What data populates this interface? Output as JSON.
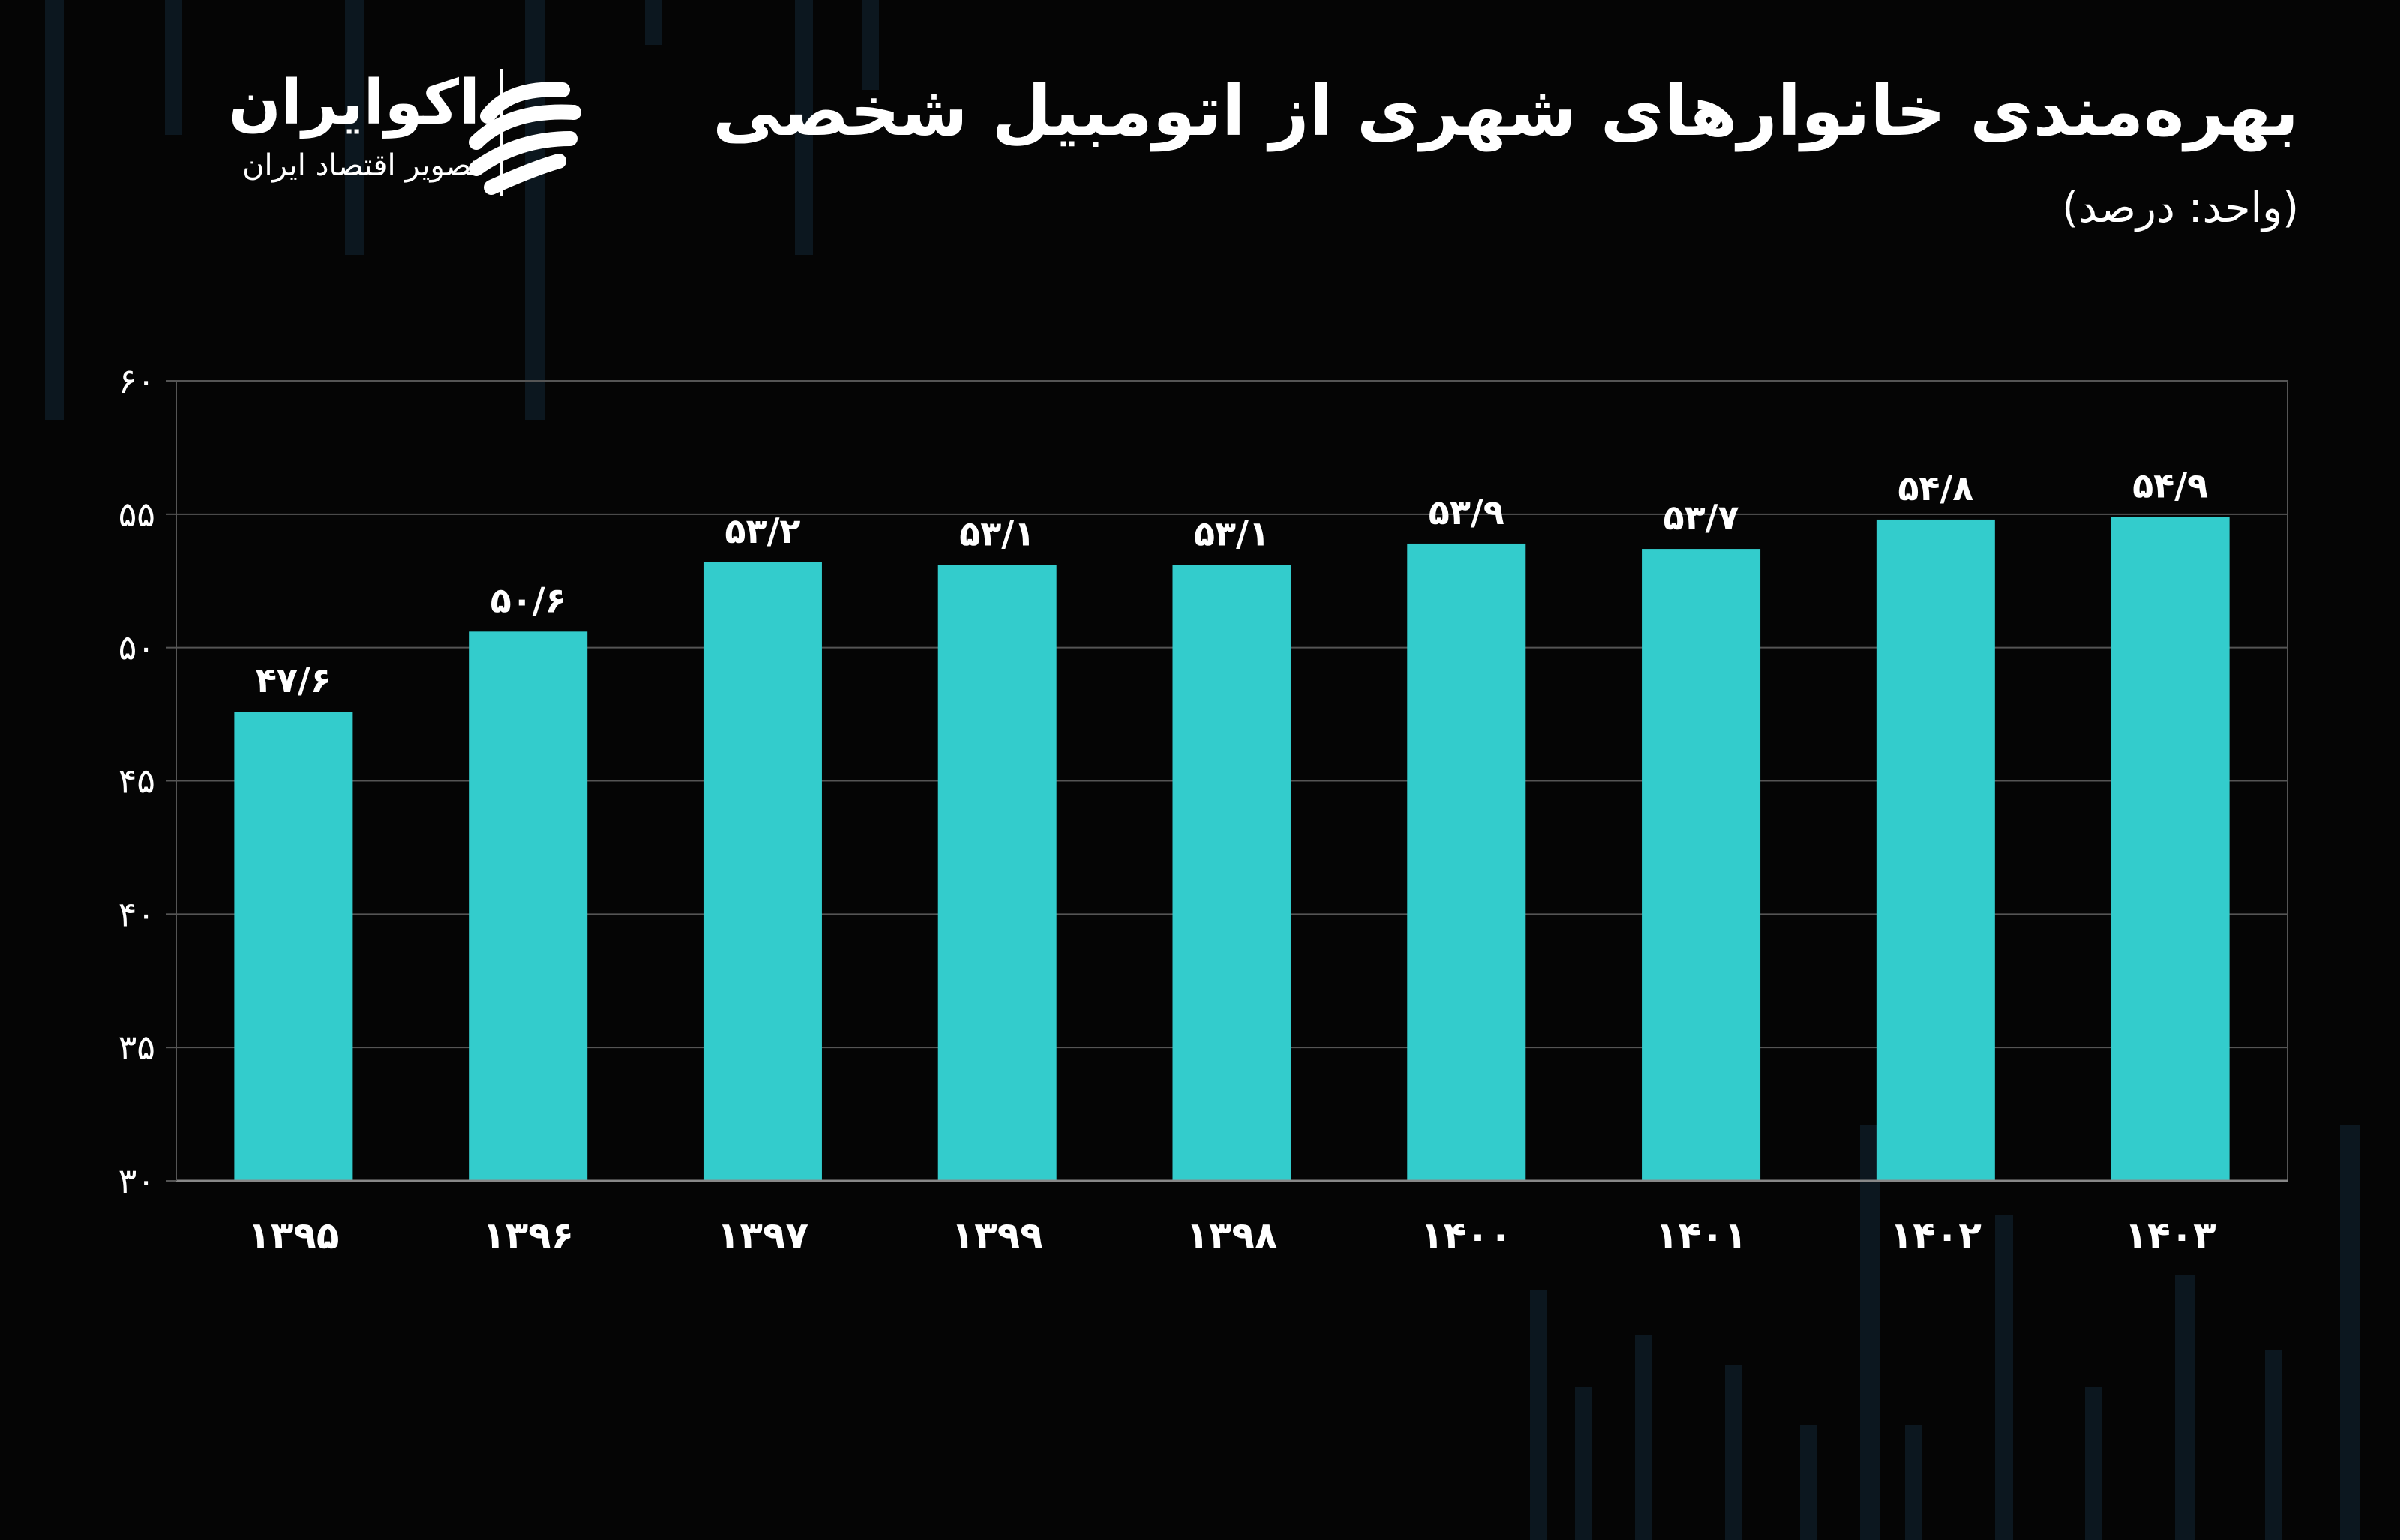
{
  "header": {
    "title": "بهره‌مندی خانوارهای شهری از اتومبیل شخصی",
    "subtitle": "(واحد: درصد)"
  },
  "logo": {
    "name": "اکوایران",
    "tagline": "تصویر اقتصاد ایران"
  },
  "colors": {
    "bar": "#33cccc",
    "background": "#050505",
    "grid": "#555555",
    "text": "#ffffff"
  },
  "chart_data": {
    "type": "bar",
    "title": "بهره‌مندی خانوارهای شهری از اتومبیل شخصی",
    "ylabel": "",
    "xlabel": "",
    "ylim": [
      30,
      60
    ],
    "yticks": [
      "۳۰",
      "۳۵",
      "۴۰",
      "۴۵",
      "۵۰",
      "۵۵",
      "۶۰"
    ],
    "ytick_values": [
      30,
      35,
      40,
      45,
      50,
      55,
      60
    ],
    "grid": true,
    "categories": [
      "۱۳۹۵",
      "۱۳۹۶",
      "۱۳۹۷",
      "۱۳۹۹",
      "۱۳۹۸",
      "۱۴۰۰",
      "۱۴۰۱",
      "۱۴۰۲",
      "۱۴۰۳"
    ],
    "values": [
      47.6,
      50.6,
      53.2,
      53.1,
      53.1,
      53.9,
      53.7,
      54.8,
      54.9
    ],
    "value_labels": [
      "۴۷/۶",
      "۵۰/۶",
      "۵۳/۲",
      "۵۳/۱",
      "۵۳/۱",
      "۵۳/۹",
      "۵۳/۷",
      "۵۴/۸",
      "۵۴/۹"
    ]
  }
}
